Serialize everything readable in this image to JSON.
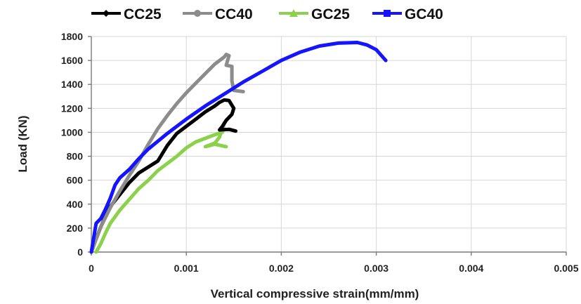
{
  "chart_data": {
    "type": "line",
    "xlabel": "Vertical  compressive strain(mm/mm)",
    "ylabel": "Load (KN)",
    "xlim": [
      0,
      0.005
    ],
    "ylim": [
      0,
      1800
    ],
    "x_ticks": [
      "0",
      "0.001",
      "0.002",
      "0.003",
      "0.004",
      "0.005"
    ],
    "y_ticks": [
      "0",
      "200",
      "400",
      "600",
      "800",
      "1000",
      "1200",
      "1400",
      "1600",
      "1800"
    ],
    "grid": true,
    "legend_position": "top",
    "series": [
      {
        "name": "CC25",
        "color": "#000000",
        "marker": "diamond",
        "points": [
          [
            0,
            0
          ],
          [
            5e-05,
            110
          ],
          [
            0.0001,
            210
          ],
          [
            0.00015,
            300
          ],
          [
            0.0002,
            380
          ],
          [
            0.0003,
            480
          ],
          [
            0.0004,
            580
          ],
          [
            0.0005,
            660
          ],
          [
            0.0006,
            710
          ],
          [
            0.0007,
            760
          ],
          [
            0.0008,
            890
          ],
          [
            0.0009,
            990
          ],
          [
            0.001,
            1050
          ],
          [
            0.0011,
            1110
          ],
          [
            0.0012,
            1170
          ],
          [
            0.0013,
            1220
          ],
          [
            0.00135,
            1250
          ],
          [
            0.0014,
            1270
          ],
          [
            0.00145,
            1265
          ],
          [
            0.0015,
            1200
          ],
          [
            0.00148,
            1150
          ],
          [
            0.00142,
            1100
          ],
          [
            0.00138,
            1050
          ],
          [
            0.00135,
            1020
          ],
          [
            0.00145,
            1025
          ],
          [
            0.00152,
            1010
          ]
        ]
      },
      {
        "name": "CC40",
        "color": "#8c8c8c",
        "marker": "circle",
        "points": [
          [
            0,
            0
          ],
          [
            0.0001,
            210
          ],
          [
            0.0002,
            370
          ],
          [
            0.0003,
            510
          ],
          [
            0.0004,
            640
          ],
          [
            0.0005,
            760
          ],
          [
            0.0006,
            900
          ],
          [
            0.0007,
            1030
          ],
          [
            0.0008,
            1140
          ],
          [
            0.0009,
            1240
          ],
          [
            0.001,
            1330
          ],
          [
            0.0011,
            1410
          ],
          [
            0.0012,
            1490
          ],
          [
            0.0013,
            1570
          ],
          [
            0.0014,
            1630
          ],
          [
            0.00142,
            1650
          ],
          [
            0.00145,
            1640
          ],
          [
            0.00142,
            1560
          ],
          [
            0.00148,
            1550
          ],
          [
            0.00148,
            1430
          ],
          [
            0.0015,
            1350
          ],
          [
            0.0016,
            1340
          ]
        ]
      },
      {
        "name": "GC25",
        "color": "#8cd14b",
        "marker": "triangle",
        "points": [
          [
            5e-05,
            0
          ],
          [
            0.0001,
            70
          ],
          [
            0.00015,
            160
          ],
          [
            0.0002,
            240
          ],
          [
            0.0003,
            350
          ],
          [
            0.0004,
            440
          ],
          [
            0.0005,
            530
          ],
          [
            0.0006,
            600
          ],
          [
            0.0007,
            680
          ],
          [
            0.0008,
            740
          ],
          [
            0.0009,
            800
          ],
          [
            0.001,
            870
          ],
          [
            0.0011,
            920
          ],
          [
            0.0012,
            950
          ],
          [
            0.0013,
            980
          ],
          [
            0.00138,
            1000
          ],
          [
            0.0014,
            1080
          ],
          [
            0.00135,
            960
          ],
          [
            0.0013,
            910
          ],
          [
            0.0012,
            880
          ],
          [
            0.0013,
            900
          ],
          [
            0.00142,
            880
          ]
        ]
      },
      {
        "name": "GC40",
        "color": "#1414ff",
        "marker": "square",
        "points": [
          [
            0,
            0
          ],
          [
            5e-05,
            240
          ],
          [
            0.0001,
            280
          ],
          [
            0.00015,
            360
          ],
          [
            0.0002,
            450
          ],
          [
            0.00025,
            560
          ],
          [
            0.0003,
            620
          ],
          [
            0.0004,
            690
          ],
          [
            0.0005,
            780
          ],
          [
            0.0006,
            860
          ],
          [
            0.0008,
            990
          ],
          [
            0.001,
            1110
          ],
          [
            0.0012,
            1220
          ],
          [
            0.0014,
            1320
          ],
          [
            0.0016,
            1420
          ],
          [
            0.0018,
            1510
          ],
          [
            0.002,
            1600
          ],
          [
            0.0022,
            1670
          ],
          [
            0.0024,
            1720
          ],
          [
            0.0026,
            1745
          ],
          [
            0.0028,
            1750
          ],
          [
            0.0029,
            1730
          ],
          [
            0.003,
            1690
          ],
          [
            0.0031,
            1600
          ]
        ]
      }
    ]
  }
}
